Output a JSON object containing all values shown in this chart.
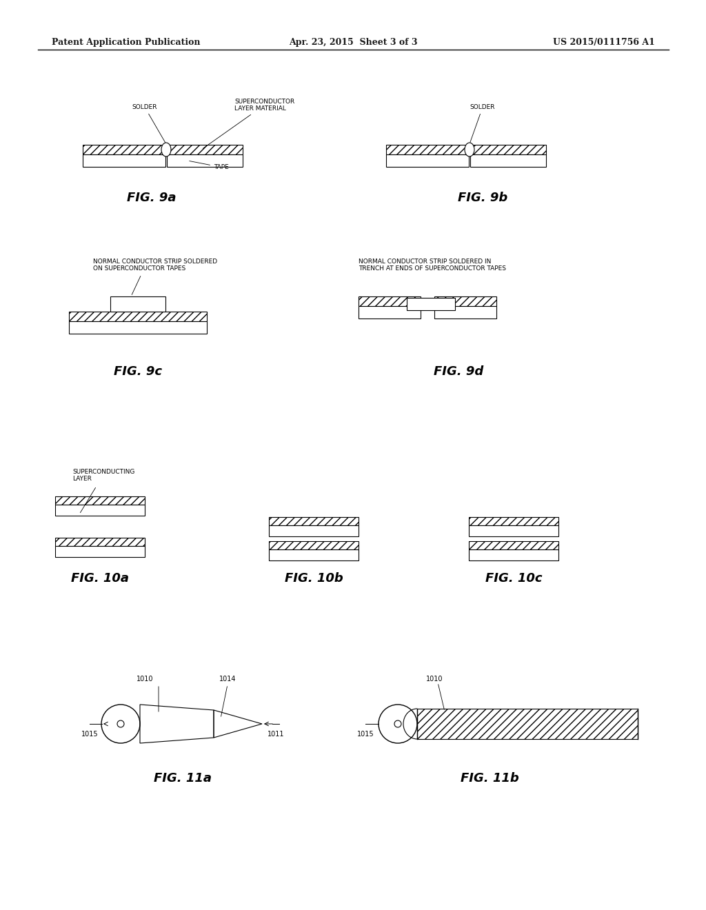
{
  "bg_color": "#ffffff",
  "header_left": "Patent Application Publication",
  "header_mid": "Apr. 23, 2015  Sheet 3 of 3",
  "header_right": "US 2015/0111756 A1",
  "fig_labels": [
    "FIG. 9a",
    "FIG. 9b",
    "FIG. 9c",
    "FIG. 9d",
    "FIG. 10a",
    "FIG. 10b",
    "FIG. 10c",
    "FIG. 11a",
    "FIG. 11b"
  ]
}
